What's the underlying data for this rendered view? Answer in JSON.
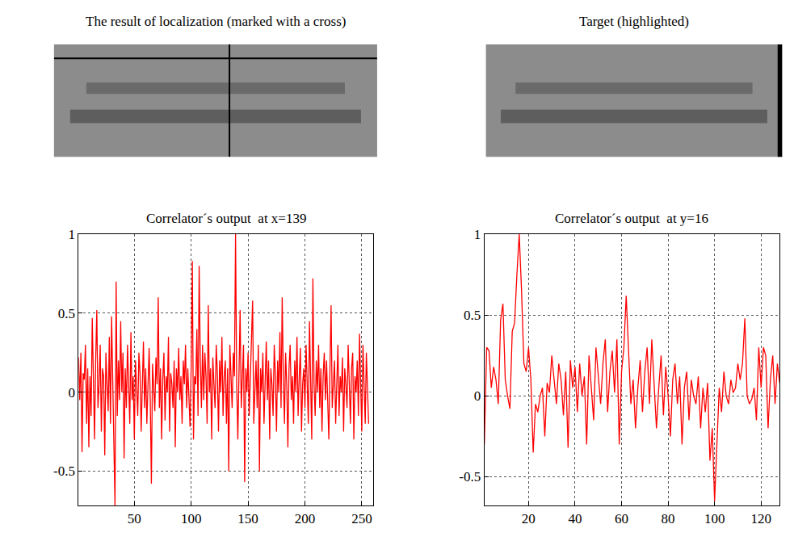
{
  "panels": [
    {
      "type": "image",
      "title": "The result of localization (marked with a cross)",
      "xlim": [
        0,
        256
      ],
      "ylim": [
        128,
        0
      ],
      "cross": {
        "x": 139,
        "y": 16
      }
    },
    {
      "type": "image",
      "title": "Target (highlighted)"
    }
  ],
  "chart_data": [
    {
      "type": "line",
      "title": "Correlator´s output  at x=139",
      "color": "#ff0000",
      "grid": true,
      "xlim": [
        1,
        260
      ],
      "ylim": [
        -0.72,
        1
      ],
      "xticks": [
        50,
        100,
        150,
        200,
        250
      ],
      "yticks": [
        -0.5,
        0,
        0.5,
        1
      ],
      "x": [
        1,
        2,
        3,
        4,
        5,
        6,
        7,
        8,
        9,
        10,
        11,
        12,
        13,
        14,
        15,
        16,
        17,
        18,
        19,
        20,
        21,
        22,
        23,
        24,
        25,
        26,
        27,
        28,
        29,
        30,
        31,
        32,
        33,
        34,
        35,
        36,
        37,
        38,
        39,
        40,
        41,
        42,
        43,
        44,
        45,
        46,
        47,
        48,
        49,
        50,
        51,
        52,
        53,
        54,
        55,
        56,
        57,
        58,
        59,
        60,
        61,
        62,
        63,
        64,
        65,
        66,
        67,
        68,
        69,
        70,
        71,
        72,
        73,
        74,
        75,
        76,
        77,
        78,
        79,
        80,
        81,
        82,
        83,
        84,
        85,
        86,
        87,
        88,
        89,
        90,
        91,
        92,
        93,
        94,
        95,
        96,
        97,
        98,
        99,
        100,
        101,
        102,
        103,
        104,
        105,
        106,
        107,
        108,
        109,
        110,
        111,
        112,
        113,
        114,
        115,
        116,
        117,
        118,
        119,
        120,
        121,
        122,
        123,
        124,
        125,
        126,
        127,
        128,
        129,
        130,
        131,
        132,
        133,
        134,
        135,
        136,
        137,
        138,
        139,
        140,
        141,
        142,
        143,
        144,
        145,
        146,
        147,
        148,
        149,
        150,
        151,
        152,
        153,
        154,
        155,
        156,
        157,
        158,
        159,
        160,
        161,
        162,
        163,
        164,
        165,
        166,
        167,
        168,
        169,
        170,
        171,
        172,
        173,
        174,
        175,
        176,
        177,
        178,
        179,
        180,
        181,
        182,
        183,
        184,
        185,
        186,
        187,
        188,
        189,
        190,
        191,
        192,
        193,
        194,
        195,
        196,
        197,
        198,
        199,
        200,
        201,
        202,
        203,
        204,
        205,
        206,
        207,
        208,
        209,
        210,
        211,
        212,
        213,
        214,
        215,
        216,
        217,
        218,
        219,
        220,
        221,
        222,
        223,
        224,
        225,
        226,
        227,
        228,
        229,
        230,
        231,
        232,
        233,
        234,
        235,
        236,
        237,
        238,
        239,
        240,
        241,
        242,
        243,
        244,
        245,
        246,
        247,
        248,
        249,
        250,
        251,
        252,
        253,
        254,
        255,
        256
      ],
      "values": [
        0.22,
        -0.05,
        0.25,
        -0.38,
        0.12,
        0.08,
        0.3,
        -0.2,
        0.15,
        -0.35,
        0.1,
        -0.15,
        0.47,
        0.05,
        -0.3,
        0.2,
        0.52,
        -0.1,
        0.05,
        0.3,
        -0.25,
        0.15,
        0.1,
        -0.4,
        0.25,
        0.05,
        -0.12,
        0.35,
        -0.2,
        0.48,
        0.1,
        -0.3,
        -0.72,
        0.7,
        -0.15,
        0.2,
        -0.05,
        0.45,
        0.0,
        0.25,
        -0.42,
        0.15,
        -0.1,
        0.3,
        0.05,
        -0.2,
        0.38,
        -0.05,
        0.1,
        -0.3,
        0.2,
        0.0,
        -0.15,
        0.25,
        0.12,
        -0.25,
        0.05,
        0.32,
        -0.1,
        0.15,
        -0.2,
        0.1,
        0.28,
        -0.05,
        -0.58,
        0.18,
        0.0,
        -0.12,
        0.22,
        0.05,
        0.6,
        -0.1,
        0.15,
        -0.3,
        0.08,
        0.25,
        -0.18,
        0.1,
        0.0,
        0.35,
        -0.25,
        0.12,
        0.05,
        -0.1,
        0.2,
        -0.35,
        0.15,
        0.0,
        0.28,
        -0.05,
        0.1,
        -0.2,
        0.2,
        0.05,
        0.3,
        -0.1,
        0.15,
        0.0,
        -0.22,
        0.18,
        0.83,
        -0.3,
        0.1,
        0.05,
        0.4,
        -0.15,
        0.8,
        0.2,
        -0.1,
        0.3,
        -0.05,
        0.25,
        0.1,
        -0.2,
        0.55,
        0.0,
        0.15,
        -0.3,
        0.22,
        0.05,
        -0.1,
        0.3,
        0.12,
        -0.25,
        0.2,
        0.0,
        0.35,
        -0.15,
        0.1,
        0.2,
        -0.2,
        0.15,
        -0.5,
        0.3,
        0.05,
        -0.1,
        0.25,
        0.1,
        1.0,
        0.05,
        -0.3,
        0.2,
        0.52,
        -0.1,
        0.1,
        0.3,
        -0.57,
        0.15,
        0.0,
        0.25,
        -0.15,
        0.1,
        0.35,
        0.58,
        -0.2,
        0.05,
        0.2,
        -0.1,
        0.3,
        -0.5,
        0.15,
        0.0,
        0.25,
        -0.2,
        0.1,
        0.32,
        -0.05,
        0.2,
        -0.3,
        0.15,
        0.05,
        -0.15,
        0.3,
        0.1,
        -0.25,
        0.2,
        0.0,
        0.38,
        -0.1,
        0.6,
        0.1,
        -0.2,
        0.25,
        0.05,
        -0.35,
        0.15,
        0.3,
        -0.05,
        0.1,
        -0.2,
        0.2,
        0.0,
        0.35,
        -0.15,
        0.1,
        0.28,
        -0.25,
        0.05,
        0.15,
        -0.1,
        0.3,
        0.0,
        -0.2,
        0.45,
        0.1,
        -0.3,
        0.72,
        0.05,
        -0.15,
        0.2,
        0.0,
        0.3,
        -0.1,
        0.15,
        -0.25,
        0.1,
        0.25,
        -0.05,
        0.2,
        0.0,
        -0.3,
        0.15,
        0.55,
        -0.1,
        0.1,
        0.2,
        -0.2,
        0.05,
        0.3,
        -0.15,
        0.1,
        0.0,
        0.22,
        -0.25,
        0.15,
        0.05,
        -0.1,
        0.3,
        0.0,
        -0.2,
        0.15,
        0.25,
        -0.3,
        0.1,
        0.0,
        0.2,
        -0.15,
        0.37,
        0.05,
        -0.25,
        0.3,
        0.1,
        -0.2,
        0.25,
        0.05,
        -0.2
      ]
    },
    {
      "type": "line",
      "title": "Correlator´s output  at y=16",
      "color": "#ff0000",
      "grid": true,
      "xlim": [
        1,
        128
      ],
      "ylim": [
        -0.68,
        1
      ],
      "xticks": [
        20,
        40,
        60,
        80,
        100,
        120
      ],
      "yticks": [
        -0.5,
        0,
        0.5,
        1
      ],
      "x": [
        1,
        2,
        3,
        4,
        5,
        6,
        7,
        8,
        9,
        10,
        11,
        12,
        13,
        14,
        15,
        16,
        17,
        18,
        19,
        20,
        21,
        22,
        23,
        24,
        25,
        26,
        27,
        28,
        29,
        30,
        31,
        32,
        33,
        34,
        35,
        36,
        37,
        38,
        39,
        40,
        41,
        42,
        43,
        44,
        45,
        46,
        47,
        48,
        49,
        50,
        51,
        52,
        53,
        54,
        55,
        56,
        57,
        58,
        59,
        60,
        61,
        62,
        63,
        64,
        65,
        66,
        67,
        68,
        69,
        70,
        71,
        72,
        73,
        74,
        75,
        76,
        77,
        78,
        79,
        80,
        81,
        82,
        83,
        84,
        85,
        86,
        87,
        88,
        89,
        90,
        91,
        92,
        93,
        94,
        95,
        96,
        97,
        98,
        99,
        100,
        101,
        102,
        103,
        104,
        105,
        106,
        107,
        108,
        109,
        110,
        111,
        112,
        113,
        114,
        115,
        116,
        117,
        118,
        119,
        120,
        121,
        122,
        123,
        124,
        125,
        126,
        127,
        128
      ],
      "values": [
        -0.3,
        0.3,
        0.28,
        0.05,
        0.18,
        0.1,
        -0.05,
        0.47,
        0.57,
        0.1,
        0.0,
        -0.08,
        0.4,
        0.45,
        0.75,
        1.0,
        0.65,
        0.2,
        0.15,
        0.3,
        0.1,
        -0.35,
        -0.05,
        -0.1,
        0.0,
        0.05,
        -0.25,
        0.08,
        0.02,
        0.25,
        0.1,
        -0.05,
        0.2,
        0.1,
        -0.12,
        0.15,
        -0.32,
        0.22,
        0.05,
        0.18,
        -0.1,
        0.2,
        0.0,
        0.12,
        -0.3,
        0.25,
        0.05,
        -0.15,
        0.3,
        0.1,
        -0.05,
        0.2,
        0.35,
        -0.1,
        0.15,
        0.28,
        0.02,
        0.35,
        -0.3,
        0.15,
        0.3,
        0.62,
        0.25,
        -0.05,
        0.1,
        -0.2,
        0.05,
        0.22,
        -0.1,
        0.15,
        0.3,
        -0.05,
        0.35,
        0.1,
        -0.2,
        0.05,
        0.25,
        -0.12,
        0.18,
        0.0,
        -0.25,
        0.1,
        0.2,
        -0.05,
        0.12,
        -0.3,
        0.05,
        0.15,
        -0.15,
        0.1,
        0.0,
        -0.05,
        0.12,
        -0.2,
        0.05,
        -0.1,
        0.08,
        -0.4,
        -0.2,
        -0.65,
        -0.3,
        0.05,
        -0.1,
        0.15,
        0.0,
        -0.05,
        0.1,
        0.02,
        0.05,
        0.2,
        0.1,
        0.2,
        0.48,
        0.0,
        -0.05,
        -0.02,
        0.05,
        -0.15,
        0.3,
        0.05,
        0.3,
        0.25,
        -0.2,
        0.1,
        0.25,
        -0.05,
        0.2,
        0.08
      ]
    }
  ]
}
